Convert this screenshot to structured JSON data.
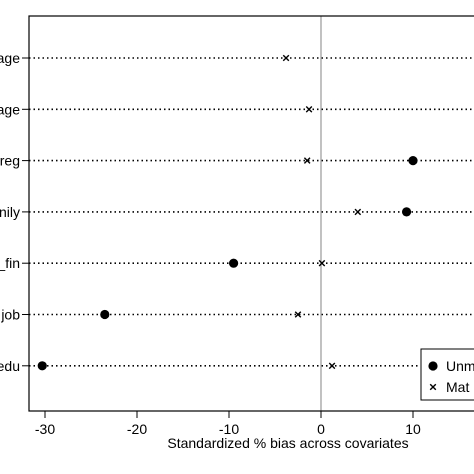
{
  "chart_data": {
    "type": "scatter",
    "title": "",
    "xlabel": "Standardized % bias across covariates",
    "ylabel": "",
    "xlim": [
      -33,
      16
    ],
    "xticks": [
      -30,
      -20,
      -10,
      0,
      10
    ],
    "xtick_labels": [
      "-30",
      "-20",
      "-10",
      "0",
      "10"
    ],
    "categories": [
      "age",
      "age",
      "reg",
      "nily",
      "_fin",
      "job",
      "edu"
    ],
    "reference_line_x": 0,
    "grid": false,
    "legend_position": "bottom-right",
    "series": [
      {
        "name": "Unm",
        "marker": "filled-circle",
        "values": [
          null,
          null,
          10,
          9.3,
          -9.5,
          -23.5,
          -30.3
        ]
      },
      {
        "name": "Mat",
        "marker": "x",
        "values": [
          -3.8,
          -1.3,
          -1.5,
          4,
          0.1,
          -2.5,
          1.2
        ]
      }
    ]
  }
}
